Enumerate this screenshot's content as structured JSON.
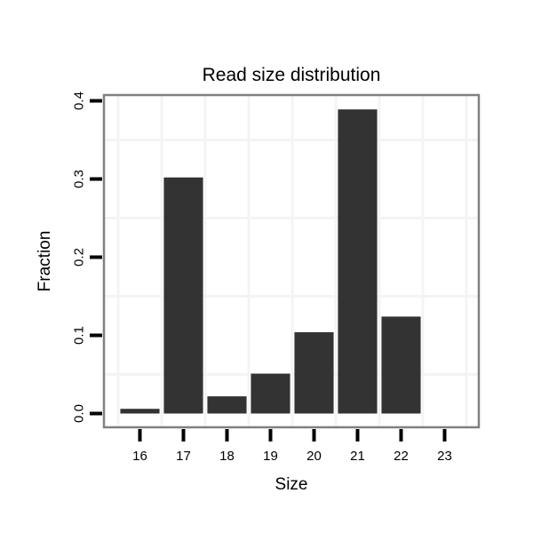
{
  "chart_data": {
    "type": "bar",
    "title": "Read size distribution",
    "xlabel": "Size",
    "ylabel": "Fraction",
    "categories": [
      "16",
      "17",
      "18",
      "19",
      "20",
      "21",
      "22",
      "23"
    ],
    "values": [
      0.006,
      0.302,
      0.022,
      0.051,
      0.104,
      0.389,
      0.124,
      0
    ],
    "y_tick_labels": [
      "0.0",
      "0.1",
      "0.2",
      "0.3",
      "0.4"
    ],
    "y_tick_values": [
      0.0,
      0.1,
      0.2,
      0.3,
      0.4
    ],
    "minor_gridlines_y": [
      0.05,
      0.15,
      0.25,
      0.35
    ],
    "ylim": [
      -0.018,
      0.409
    ],
    "grid": "minor-only",
    "legend": "none",
    "bar_width_fraction": 0.9,
    "colors": {
      "bar_fill": "#333333",
      "panel_border": "#808080",
      "gridline": "#f4f4f4",
      "tick": "#000000",
      "text": "#000000",
      "background": "#ffffff"
    }
  }
}
